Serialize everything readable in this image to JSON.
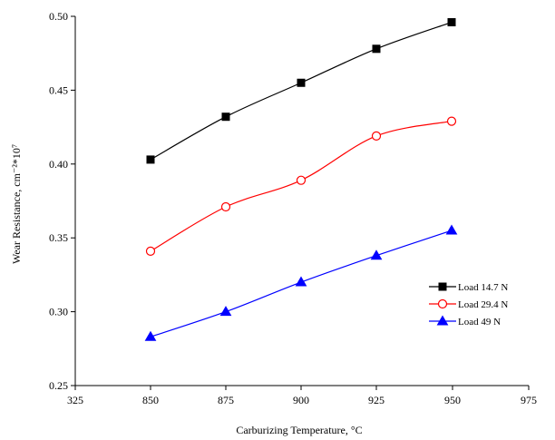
{
  "chart_data": {
    "type": "line",
    "x_tick_labels": [
      "325",
      "850",
      "875",
      "900",
      "925",
      "950",
      "975"
    ],
    "x": [
      850,
      875,
      900,
      925,
      950
    ],
    "y_ticks": [
      0.25,
      0.3,
      0.35,
      0.4,
      0.45,
      0.5
    ],
    "y_tick_labels": [
      "0.25",
      "0.30",
      "0.35",
      "0.40",
      "0.45",
      "0.50"
    ],
    "ylim": [
      0.25,
      0.5
    ],
    "xlabel": "Carburizing  Temperature, °C",
    "ylabel": "Wear  Resistance,  cm⁻²*10⁷",
    "grid": false,
    "legend_position": "right",
    "series": [
      {
        "name": "Load  14.7 N",
        "color": "#000000",
        "marker": "square",
        "marker_fill": "#000000",
        "values": [
          0.403,
          0.432,
          0.455,
          0.478,
          0.496
        ]
      },
      {
        "name": "Load  29.4 N",
        "color": "#ff0000",
        "marker": "circle",
        "marker_fill": "#ffffff",
        "values": [
          0.341,
          0.371,
          0.389,
          0.419,
          0.429
        ]
      },
      {
        "name": "Load  49 N",
        "color": "#0000ff",
        "marker": "triangle",
        "marker_fill": "#0000ff",
        "values": [
          0.283,
          0.3,
          0.32,
          0.338,
          0.355
        ]
      }
    ]
  }
}
